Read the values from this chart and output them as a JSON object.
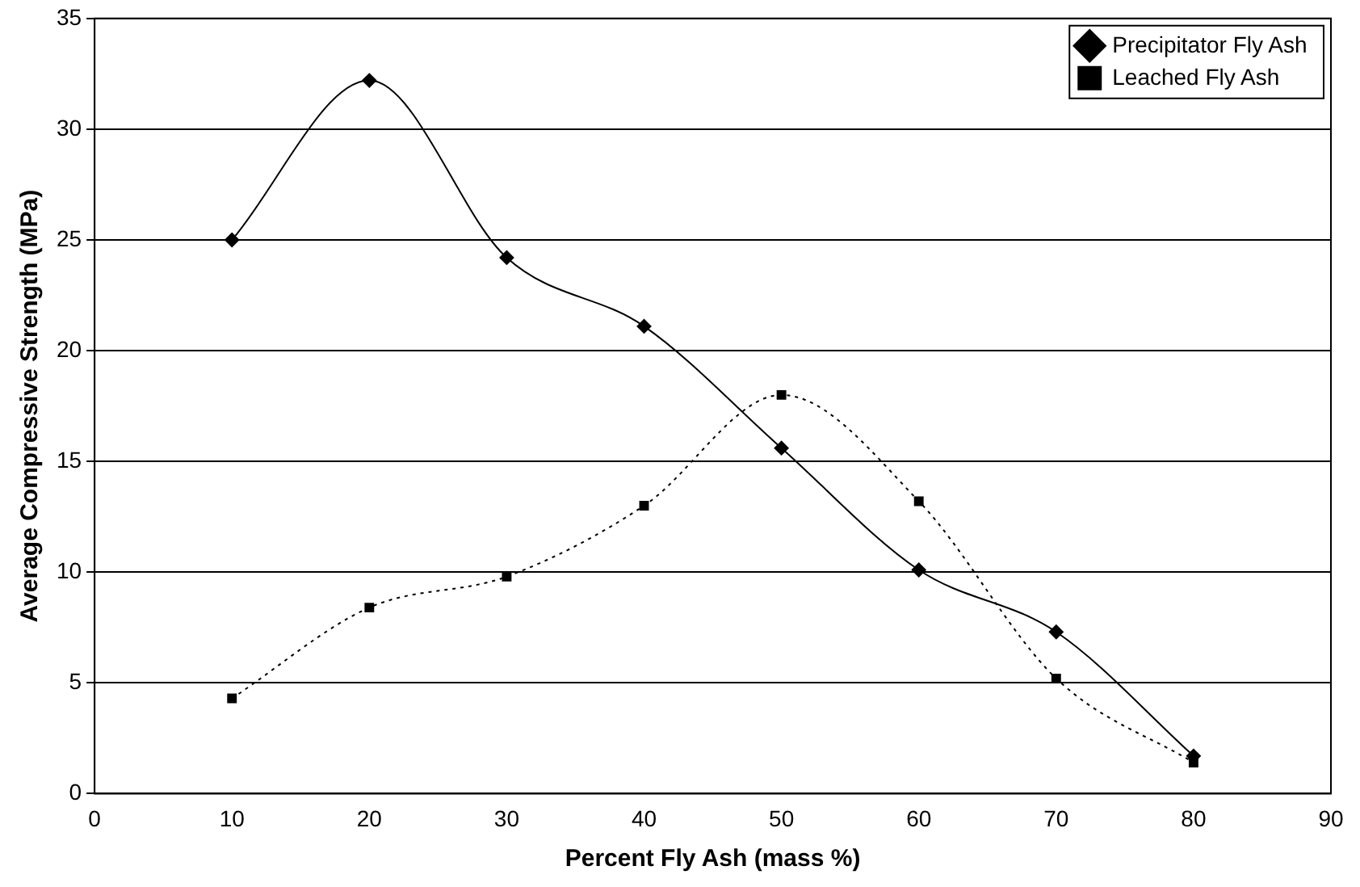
{
  "chart_data": {
    "type": "line",
    "xlabel": "Percent Fly Ash (mass %)",
    "ylabel": "Average Compressive Strength (MPa)",
    "x": [
      10,
      20,
      30,
      40,
      50,
      60,
      70,
      80
    ],
    "series": [
      {
        "name": "Precipitator Fly Ash",
        "color": "#000000",
        "marker": "diamond",
        "line_style": "solid",
        "values": [
          25.0,
          32.2,
          24.2,
          21.1,
          15.6,
          10.1,
          7.3,
          1.7
        ]
      },
      {
        "name": "Leached Fly Ash",
        "color": "#000000",
        "marker": "square",
        "line_style": "dotted",
        "values": [
          4.3,
          8.4,
          9.8,
          13.0,
          18.0,
          13.2,
          5.2,
          1.4
        ]
      }
    ],
    "xlim": [
      0,
      90
    ],
    "xticks": [
      0,
      10,
      20,
      30,
      40,
      50,
      60,
      70,
      80,
      90
    ],
    "ylim": [
      0,
      35
    ],
    "yticks": [
      0,
      5,
      10,
      15,
      20,
      25,
      30,
      35
    ],
    "grid": "y",
    "legend": "top right"
  }
}
